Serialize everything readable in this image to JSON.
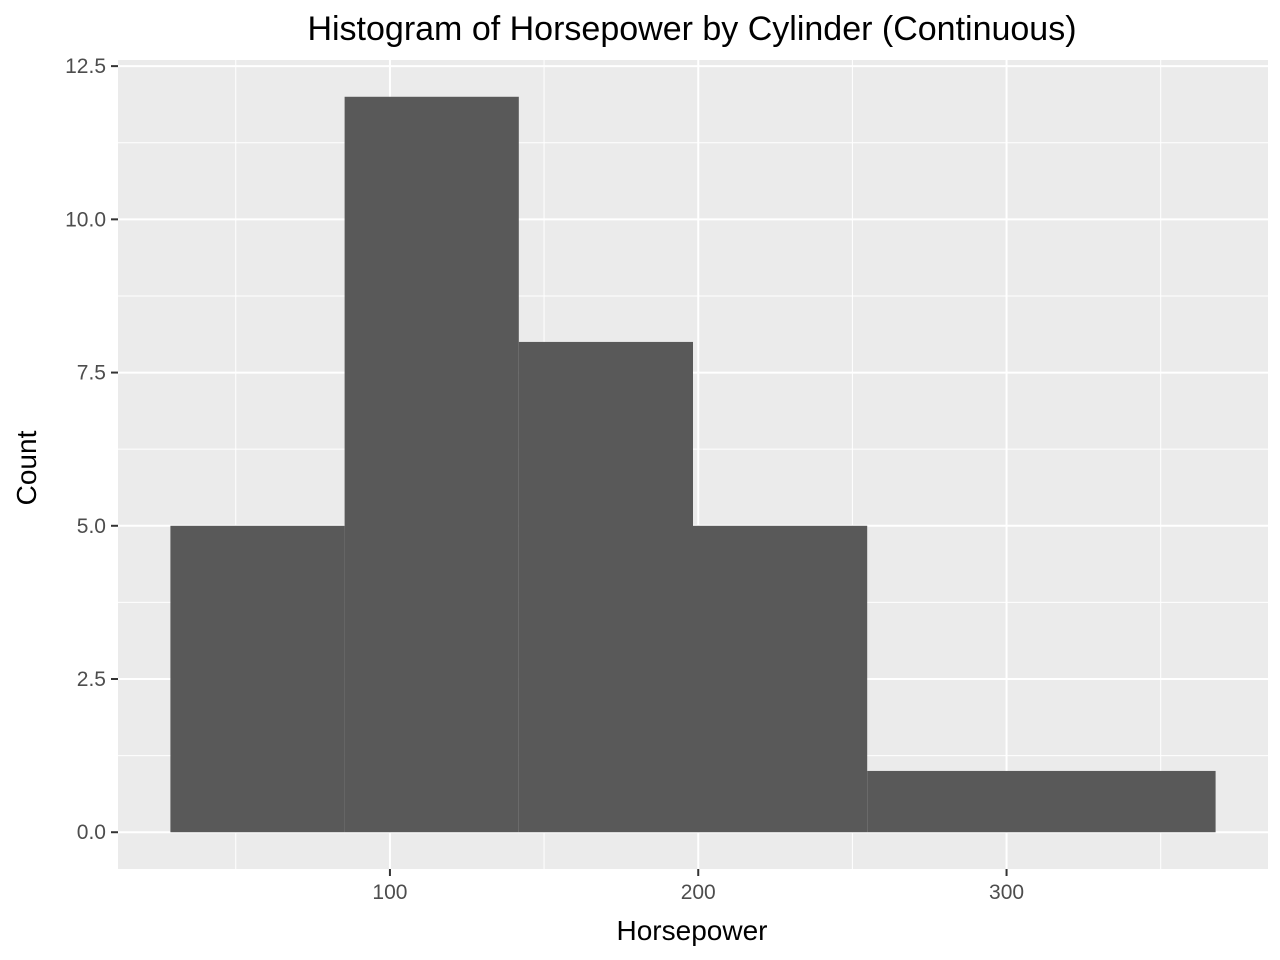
{
  "chart_data": {
    "type": "bar",
    "subtype": "histogram",
    "title": "Histogram of Horsepower by Cylinder (Continuous)",
    "xlabel": "Horsepower",
    "ylabel": "Count",
    "bins": [
      {
        "x0": 28.8,
        "x1": 85.3,
        "count": 5
      },
      {
        "x0": 85.3,
        "x1": 141.8,
        "count": 12
      },
      {
        "x0": 141.8,
        "x1": 198.3,
        "count": 8
      },
      {
        "x0": 198.3,
        "x1": 254.8,
        "count": 5
      },
      {
        "x0": 254.8,
        "x1": 367.8,
        "count": 1
      }
    ],
    "xlim": [
      11.8,
      384.8
    ],
    "ylim": [
      -0.6,
      12.6
    ],
    "x_ticks": [
      100,
      200,
      300
    ],
    "x_minor_ticks": [
      50,
      150,
      250,
      350
    ],
    "y_ticks": [
      0,
      2.5,
      5,
      7.5,
      10,
      12.5
    ],
    "y_tick_labels": [
      "0.0",
      "2.5",
      "5.0",
      "7.5",
      "10.0",
      "12.5"
    ],
    "grid": true,
    "colors": {
      "panel_background": "#ebebeb",
      "grid_line": "#ffffff",
      "bar_fill": "#595959",
      "tick_label": "#4d4d4d",
      "tick_mark": "#333333"
    }
  }
}
